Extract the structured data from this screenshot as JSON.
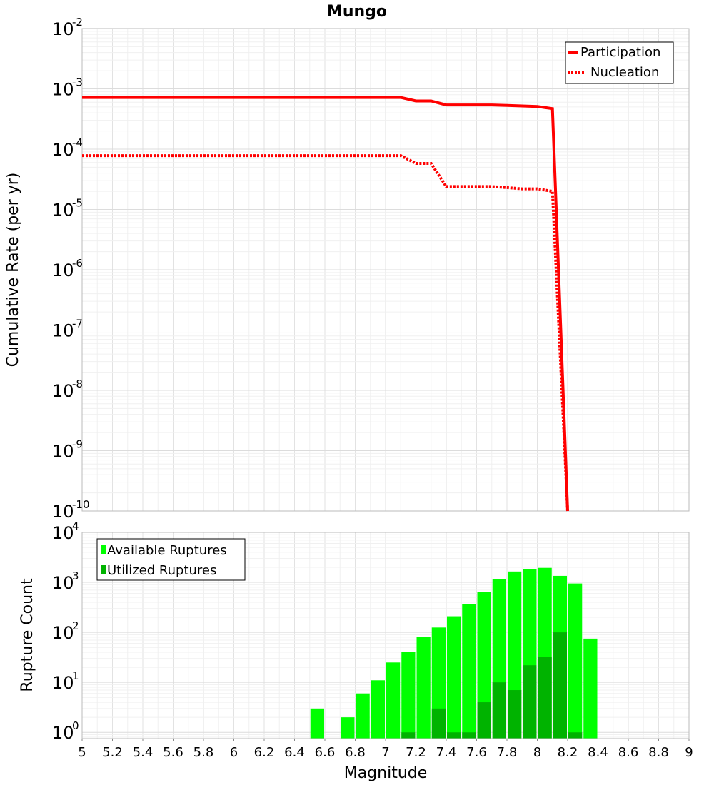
{
  "title": "Mungo",
  "xlabel": "Magnitude",
  "x_ticks": [
    "5",
    "5.2",
    "5.4",
    "5.6",
    "5.8",
    "6",
    "6.2",
    "6.4",
    "6.6",
    "6.8",
    "7",
    "7.2",
    "7.4",
    "7.6",
    "7.8",
    "8",
    "8.2",
    "8.4",
    "8.6",
    "8.8",
    "9"
  ],
  "chart_data": [
    {
      "type": "line",
      "ylabel": "Cumulative Rate (per yr)",
      "xlim": [
        5,
        9
      ],
      "ylim": [
        1e-10,
        0.01
      ],
      "yscale": "log",
      "grid": true,
      "legend_position": "top-right",
      "y_tick_exponents": [
        "-10",
        "-9",
        "-8",
        "-7",
        "-6",
        "-5",
        "-4",
        "-3",
        "-2"
      ],
      "series": [
        {
          "name": "Participation",
          "style": "solid",
          "color": "#ff0000",
          "x": [
            5.0,
            7.1,
            7.2,
            7.3,
            7.4,
            7.5,
            7.6,
            7.7,
            7.8,
            7.9,
            8.0,
            8.1,
            8.2
          ],
          "y": [
            0.00072,
            0.00072,
            0.00063,
            0.00063,
            0.00054,
            0.00054,
            0.00054,
            0.00054,
            0.00053,
            0.00052,
            0.00051,
            0.00047,
            1e-10
          ]
        },
        {
          "name": "Nucleation",
          "style": "dotted",
          "color": "#ff0000",
          "x": [
            5.0,
            7.1,
            7.2,
            7.3,
            7.4,
            7.5,
            7.6,
            7.7,
            7.8,
            7.9,
            8.0,
            8.1,
            8.2
          ],
          "y": [
            7.8e-05,
            7.8e-05,
            5.8e-05,
            5.8e-05,
            2.4e-05,
            2.4e-05,
            2.4e-05,
            2.4e-05,
            2.3e-05,
            2.2e-05,
            2.2e-05,
            2e-05,
            1e-10
          ]
        }
      ]
    },
    {
      "type": "bar",
      "ylabel": "Rupture Count",
      "xlim": [
        5,
        9
      ],
      "ylim": [
        0.75,
        10000
      ],
      "yscale": "log",
      "grid": true,
      "legend_position": "top-left",
      "y_tick_exponents": [
        "0",
        "1",
        "2",
        "3",
        "4"
      ],
      "bin_width": 0.1,
      "series": [
        {
          "name": "Available Ruptures",
          "color": "#00ff00",
          "x": [
            6.5,
            6.6,
            6.7,
            6.8,
            6.9,
            7.0,
            7.1,
            7.2,
            7.3,
            7.4,
            7.5,
            7.6,
            7.7,
            7.8,
            7.9,
            8.0,
            8.1,
            8.2,
            8.3
          ],
          "values": [
            3,
            0,
            2,
            6,
            11,
            25,
            40,
            80,
            125,
            210,
            370,
            650,
            1150,
            1650,
            1850,
            1950,
            1350,
            950,
            75
          ]
        },
        {
          "name": "Utilized Ruptures",
          "color": "#00b300",
          "x": [
            6.5,
            6.6,
            6.7,
            6.8,
            6.9,
            7.0,
            7.1,
            7.2,
            7.3,
            7.4,
            7.5,
            7.6,
            7.7,
            7.8,
            7.9,
            8.0,
            8.1,
            8.2,
            8.3
          ],
          "values": [
            0,
            0,
            0,
            0,
            0,
            0,
            1,
            0,
            3,
            1,
            1,
            4,
            10,
            7,
            22,
            32,
            100,
            1,
            0
          ]
        }
      ]
    }
  ]
}
